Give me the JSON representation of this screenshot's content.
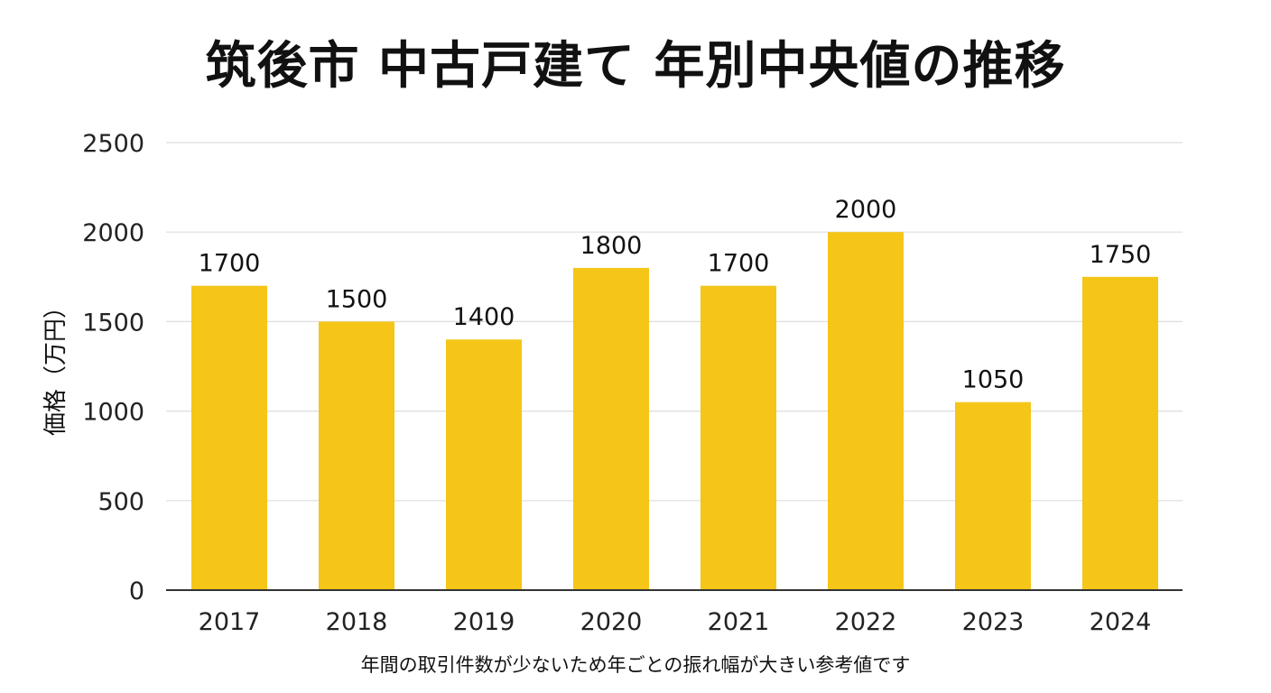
{
  "chart_data": {
    "type": "bar",
    "title": "筑後市 中古戸建て 年別中央値の推移",
    "xlabel": "",
    "ylabel": "価格（万円）",
    "note": "年間の取引件数が少ないため年ごとの振れ幅が大きい参考値です",
    "categories": [
      "2017",
      "2018",
      "2019",
      "2020",
      "2021",
      "2022",
      "2023",
      "2024"
    ],
    "values": [
      1700,
      1500,
      1400,
      1800,
      1700,
      2000,
      1050,
      1750
    ],
    "ylim": [
      0,
      2500
    ],
    "yticks": [
      0,
      500,
      1000,
      1500,
      2000,
      2500
    ],
    "grid": true,
    "legend": "none",
    "bar_color": "#F5C518",
    "grid_color": "#DDDDDD",
    "axis_color": "#333333"
  }
}
